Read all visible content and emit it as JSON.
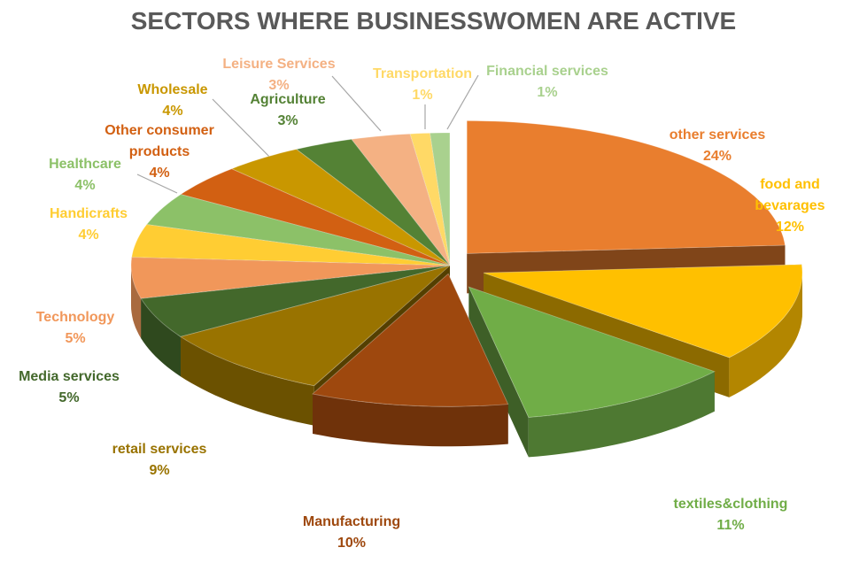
{
  "chart_data": {
    "type": "pie",
    "title": "SECTORS WHERE BUSINESSWOMEN ARE ACTIVE",
    "categories": [
      "other services",
      "food and bevarages",
      "textiles&clothing",
      "Manufacturing",
      "retail services",
      "Media services",
      "Technology",
      "Handicrafts",
      "Healthcare",
      "Other consumer products",
      "Wholesale",
      "Agriculture",
      "Leisure Services",
      "Transportation",
      "Financial services"
    ],
    "values": [
      24,
      12,
      11,
      10,
      9,
      5,
      5,
      4,
      4,
      4,
      4,
      3,
      3,
      1,
      1
    ],
    "value_labels": [
      "24%",
      "12%",
      "11%",
      "10%",
      "9%",
      "5%",
      "5%",
      "4%",
      "4%",
      "4%",
      "4%",
      "3%",
      "3%",
      "1%",
      "1%"
    ],
    "colors": [
      "#E97E2E",
      "#FFC000",
      "#70AD47",
      "#9E480E",
      "#997300",
      "#43682B",
      "#F1975A",
      "#FFCD33",
      "#8CC168",
      "#D26012",
      "#C99700",
      "#548235",
      "#F4B183",
      "#FFD966",
      "#A9D18E"
    ]
  }
}
